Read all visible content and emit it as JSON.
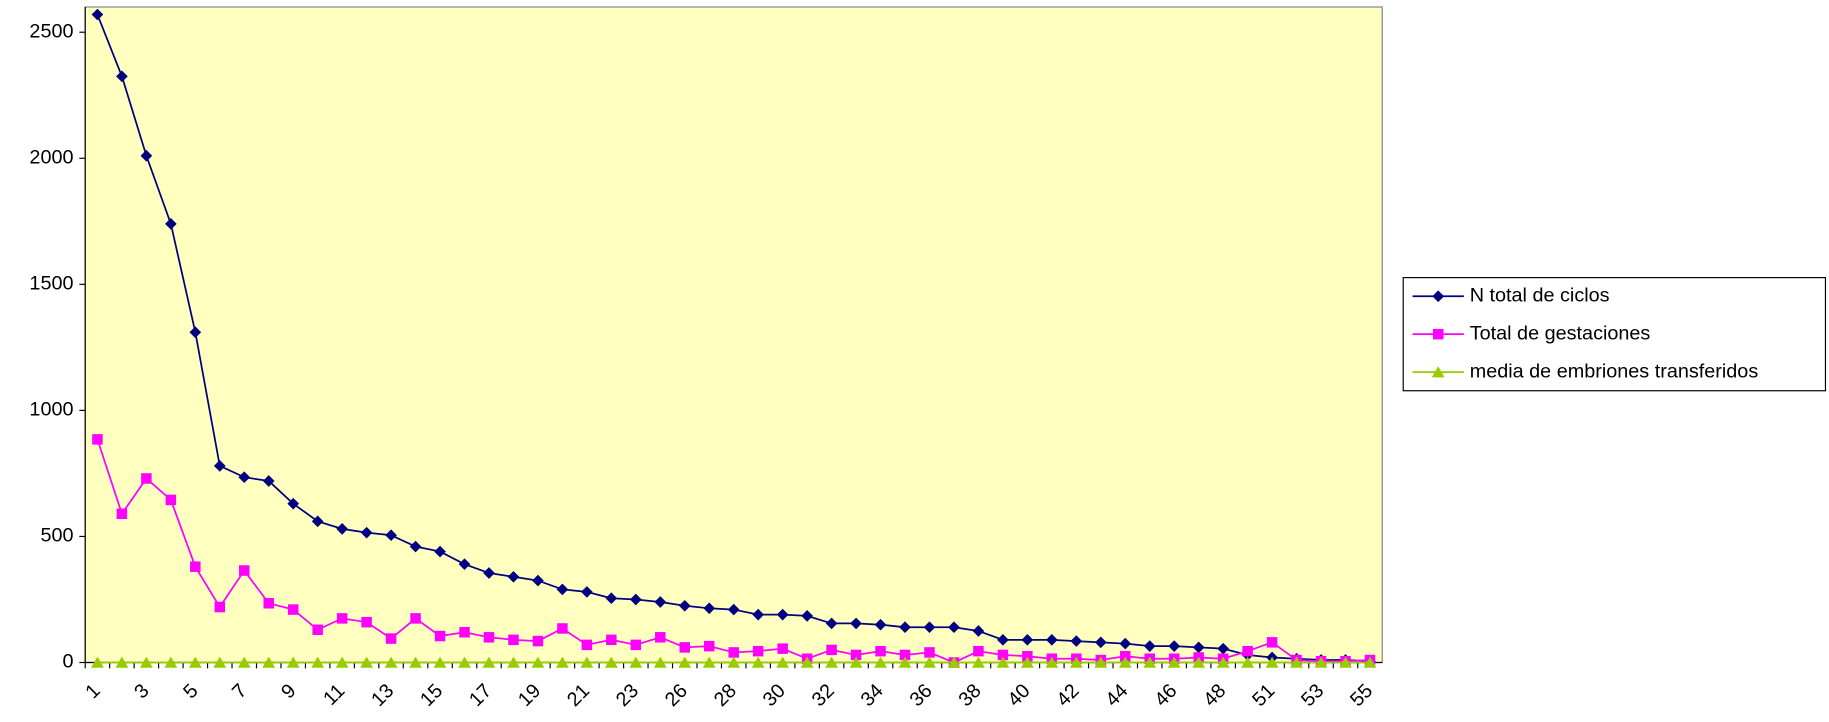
{
  "chart_data": {
    "type": "line",
    "categories": [
      1,
      null,
      3,
      null,
      5,
      null,
      7,
      null,
      9,
      null,
      11,
      null,
      13,
      null,
      15,
      null,
      17,
      null,
      19,
      null,
      21,
      null,
      23,
      null,
      26,
      null,
      28,
      null,
      30,
      null,
      32,
      null,
      34,
      null,
      36,
      null,
      38,
      null,
      40,
      null,
      42,
      null,
      44,
      null,
      46,
      null,
      48,
      null,
      51,
      null,
      53,
      null,
      55
    ],
    "series": [
      {
        "name": "N total de ciclos",
        "color": "#000080",
        "marker": "diamond",
        "values": [
          2570,
          2325,
          2010,
          1740,
          1310,
          780,
          735,
          720,
          630,
          560,
          530,
          515,
          505,
          460,
          440,
          390,
          355,
          340,
          325,
          290,
          280,
          255,
          250,
          240,
          225,
          215,
          210,
          190,
          190,
          185,
          155,
          155,
          150,
          140,
          140,
          140,
          125,
          90,
          90,
          90,
          85,
          80,
          75,
          65,
          65,
          60,
          55,
          30,
          20,
          15,
          10,
          10,
          5
        ]
      },
      {
        "name": "Total de gestaciones",
        "color": "#ff00ff",
        "marker": "square",
        "values": [
          885,
          590,
          730,
          645,
          380,
          220,
          365,
          235,
          210,
          130,
          175,
          160,
          95,
          175,
          105,
          120,
          100,
          90,
          85,
          135,
          70,
          90,
          70,
          100,
          60,
          65,
          40,
          45,
          55,
          15,
          50,
          30,
          45,
          30,
          40,
          0,
          45,
          30,
          25,
          15,
          15,
          10,
          25,
          15,
          15,
          20,
          15,
          45,
          80,
          10,
          5,
          5,
          10
        ]
      },
      {
        "name": "media de embriones transferidos",
        "color": "#99cc00",
        "marker": "triangle",
        "values": [
          0,
          0,
          0,
          0,
          0,
          0,
          0,
          0,
          0,
          0,
          0,
          0,
          0,
          0,
          0,
          0,
          0,
          0,
          0,
          0,
          0,
          0,
          0,
          0,
          0,
          0,
          0,
          0,
          0,
          0,
          0,
          0,
          0,
          0,
          0,
          0,
          0,
          0,
          0,
          0,
          0,
          0,
          0,
          0,
          0,
          0,
          0,
          0,
          0,
          0,
          0,
          0,
          0
        ]
      }
    ],
    "ylim": [
      0,
      2600
    ],
    "yticks": [
      0,
      500,
      1000,
      1500,
      2000,
      2500
    ],
    "background": "#ffffc0",
    "legend": "right"
  }
}
